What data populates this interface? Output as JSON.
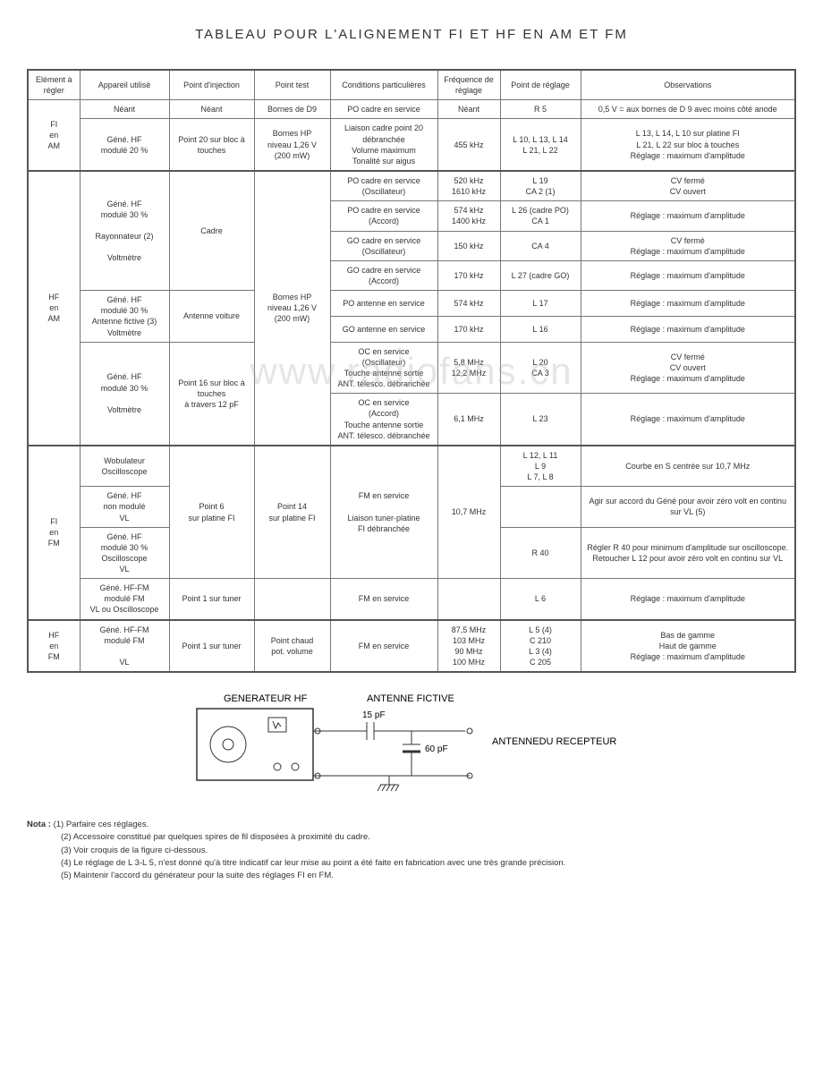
{
  "title": "TABLEAU POUR L'ALIGNEMENT FI ET HF EN AM ET FM",
  "headers": [
    "Elément à régler",
    "Appareil utilisé",
    "Point d'injection",
    "Point test",
    "Conditions particulières",
    "Fréquence de réglage",
    "Point de réglage",
    "Observations"
  ],
  "watermark": "www.radiofans.cn",
  "sections": {
    "fi_am": {
      "label": "FI\nen\nAM",
      "rows": [
        {
          "app": "Néant",
          "inj": "Néant",
          "test": "Bornes de D9",
          "cond": "PO cadre en service",
          "freq": "Néant",
          "pt": "R 5",
          "obs": "0,5 V = aux bornes de D 9 avec moins côté anode"
        },
        {
          "app": "Géné. HF\nmodulé 20 %",
          "inj": "Point 20 sur bloc à touches",
          "test": "Bornes HP\nniveau 1,26 V\n(200 mW)",
          "cond": "Liaison cadre point 20 débranchée\nVolume maximum\nTonalité sur aigus",
          "freq": "455 kHz",
          "pt": "L 10, L 13, L 14\nL 21, L 22",
          "obs": "L 13, L 14, L 10 sur platine FI\nL 21, L 22 sur bloc à touches\nRéglage : maximum d'amplitude"
        }
      ]
    },
    "hf_am": {
      "label": "HF\nen\nAM",
      "test_shared": "Bornes HP\nniveau 1,26 V\n(200 mW)",
      "group1": {
        "app": "Géné. HF\nmodulé 30 %\n\nRayonnateur (2)\n\nVoltmètre",
        "inj": "Cadre",
        "rows": [
          {
            "cond": "PO cadre en service\n(Oscillateur)",
            "freq": "520 kHz\n1610 kHz",
            "pt": "L 19\nCA 2  (1)",
            "obs": "CV fermé\nCV ouvert"
          },
          {
            "cond": "PO cadre en service\n(Accord)",
            "freq": "574 kHz\n1400 kHz",
            "pt": "L 26 (cadre PO)\nCA 1",
            "obs": "Réglage : maximum d'amplitude"
          },
          {
            "cond": "GO cadre en service\n(Oscillateur)",
            "freq": "150 kHz",
            "pt": "CA 4",
            "obs": "CV fermé\nRéglage : maximum d'amplitude"
          },
          {
            "cond": "GO cadre en service\n(Accord)",
            "freq": "170 kHz",
            "pt": "L 27 (cadre GO)",
            "obs": "Réglage : maximum d'amplitude"
          }
        ]
      },
      "group2": {
        "app": "Géné. HF\nmodulé 30 %\nAntenne fictive (3)\nVoltmètre",
        "inj": "Antenne voiture",
        "rows": [
          {
            "cond": "PO antenne en service",
            "freq": "574 kHz",
            "pt": "L 17",
            "obs": "Réglage : maximum d'amplitude"
          },
          {
            "cond": "GO antenne en service",
            "freq": "170 kHz",
            "pt": "L 16",
            "obs": "Réglage : maximum d'amplitude"
          }
        ]
      },
      "group3": {
        "app": "Géné. HF\nmodulé 30 %\n\nVoltmètre",
        "inj": "Point 16 sur bloc à touches\nà travers 12 pF",
        "rows": [
          {
            "cond": "OC en service\n(Oscillateur)\nTouche antenne sortie\nANT. télesco. débranchée",
            "freq": "5,8 MHz\n12,2 MHz",
            "pt": "L 20\nCA 3",
            "obs": "CV fermé\nCV ouvert\nRéglage : maximum d'amplitude"
          },
          {
            "cond": "OC en service\n(Accord)\nTouche antenne sortie\nANT. télesco. débranchée",
            "freq": "6,1 MHz",
            "pt": "L 23",
            "obs": "Réglage : maximum d'amplitude"
          }
        ]
      }
    },
    "fi_fm": {
      "label": "FI\nen\nFM",
      "test_shared": "Point 14\nsur platine FI",
      "rows": [
        {
          "app": "Wobulateur\nOscilloscope",
          "inj": "Point 6\nsur platine FI",
          "cond": "FM en service\n\nLiaison tuner-platine\nFI débranchée",
          "freq": "10,7 MHz",
          "pt": "L 12, L 11\nL 9\nL 7, L 8",
          "obs": "Courbe en S centrée sur 10,7 MHz"
        },
        {
          "app": "Géné. HF\nnon modulé\nVL",
          "inj_ref": "same",
          "pt": "",
          "obs": "Agir sur accord du Géné pour avoir zéro volt en continu sur VL (5)"
        },
        {
          "app": "Géné. HF\nmodulé 30 %\nOscilloscope\nVL",
          "inj_ref": "same",
          "pt": "R 40",
          "obs": "Régler R 40 pour minimum d'amplitude sur oscilloscope.\nRetoucher L 12 pour avoir zéro volt en continu sur VL"
        },
        {
          "app": "Géné. HF-FM\nmodulé FM\nVL ou Oscilloscope",
          "inj": "Point 1 sur tuner",
          "test": "",
          "cond": "FM en service",
          "freq": "",
          "pt": "L 6",
          "obs": "Réglage : maximum d'amplitude"
        }
      ]
    },
    "hf_fm": {
      "label": "HF\nen\nFM",
      "rows": [
        {
          "app": "Géné. HF-FM\nmodulé FM\n\nVL",
          "inj": "Point 1 sur tuner",
          "test": "Point chaud\npot. volume",
          "cond": "FM en service",
          "freq": "87,5 MHz\n103 MHz\n90 MHz\n100 MHz",
          "pt": "L 5 (4)\nC 210\nL 3 (4)\nC 205",
          "obs": "Bas de gamme\nHaut de gamme\nRéglage : maximum d'amplitude"
        }
      ]
    }
  },
  "diagram": {
    "gen_label": "GENERATEUR HF",
    "ant_fictive": "ANTENNE FICTIVE",
    "cap1": "15 pF",
    "cap2": "60 pF",
    "ant_rx": "ANTENNE\nDU RECEPTEUR"
  },
  "notes": {
    "label": "Nota :",
    "items": [
      "(1) Parfaire ces réglages.",
      "(2) Accessoire constitué par quelques spires de fil disposées à proximité du cadre.",
      "(3) Voir croquis de la figure ci-dessous.",
      "(4) Le réglage de L 3-L 5, n'est donné qu'à titre indicatif car leur mise au point a été faite en fabrication avec une très grande précision.",
      "(5) Maintenir l'accord du générateur pour la suite des réglages FI en FM."
    ]
  }
}
